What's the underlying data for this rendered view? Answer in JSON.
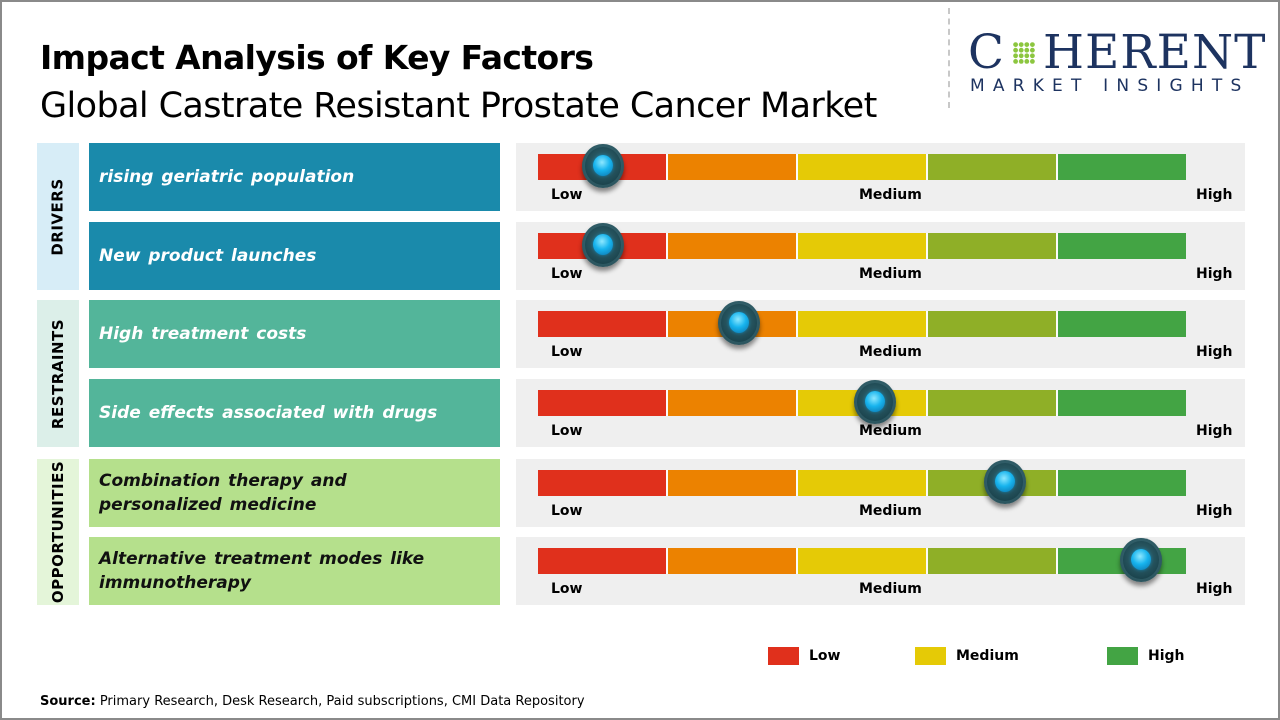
{
  "header": {
    "title": "Impact Analysis of Key Factors",
    "subtitle": "Global Castrate Resistant Prostate Cancer Market"
  },
  "logo": {
    "brand_left": "C",
    "brand_right": "HERENT",
    "tagline": "MARKET INSIGHTS",
    "icon": "globe-dots-icon",
    "color": "#1d3360"
  },
  "categories": [
    {
      "label": "DRIVERS",
      "panel_color": "#d7edf7",
      "factor_color": "#1a8aab",
      "text_color": "#ffffff"
    },
    {
      "label": "RESTRAINTS",
      "panel_color": "#dcefe9",
      "factor_color": "#53b59a",
      "text_color": "#ffffff"
    },
    {
      "label": "OPPORTUNITIES",
      "panel_color": "#e4f5d9",
      "factor_color": "#b5e08c",
      "text_color": "#111111"
    }
  ],
  "gauge_colors": [
    "#e0301c",
    "#ec8200",
    "#e5ca06",
    "#8faf27",
    "#43a444"
  ],
  "gauge_labels": {
    "low": "Low",
    "medium": "Medium",
    "high": "High"
  },
  "legend": [
    {
      "label": "Low",
      "color": "#e0301c"
    },
    {
      "label": "Medium",
      "color": "#e5ca06"
    },
    {
      "label": "High",
      "color": "#43a444"
    }
  ],
  "source": {
    "prefix": "Source:",
    "text": " Primary Research, Desk Research, Paid subscriptions, CMI Data Repository"
  },
  "chart_data": {
    "type": "table",
    "title": "Impact Analysis of Key Factors",
    "subtitle": "Global Castrate Resistant Prostate Cancer Market",
    "scale": {
      "min": 0,
      "max": 1,
      "labels": [
        "Low",
        "Medium",
        "High"
      ]
    },
    "rows": [
      {
        "category": "DRIVERS",
        "factor": "rising geriatric population",
        "impact": 0.1,
        "impact_level": "Low"
      },
      {
        "category": "DRIVERS",
        "factor": "New product launches",
        "impact": 0.1,
        "impact_level": "Low"
      },
      {
        "category": "RESTRAINTS",
        "factor": "High treatment  costs",
        "impact": 0.31,
        "impact_level": "Low-Medium"
      },
      {
        "category": "RESTRAINTS",
        "factor": "Side effects associated with drugs",
        "impact": 0.52,
        "impact_level": "Medium"
      },
      {
        "category": "OPPORTUNITIES",
        "factor": "Combination therapy and personalized medicine",
        "impact": 0.72,
        "impact_level": "Medium-High"
      },
      {
        "category": "OPPORTUNITIES",
        "factor": "Alternative treatment modes like immunotherapy",
        "impact": 0.93,
        "impact_level": "High"
      }
    ],
    "legend": [
      "Low",
      "Medium",
      "High"
    ]
  }
}
